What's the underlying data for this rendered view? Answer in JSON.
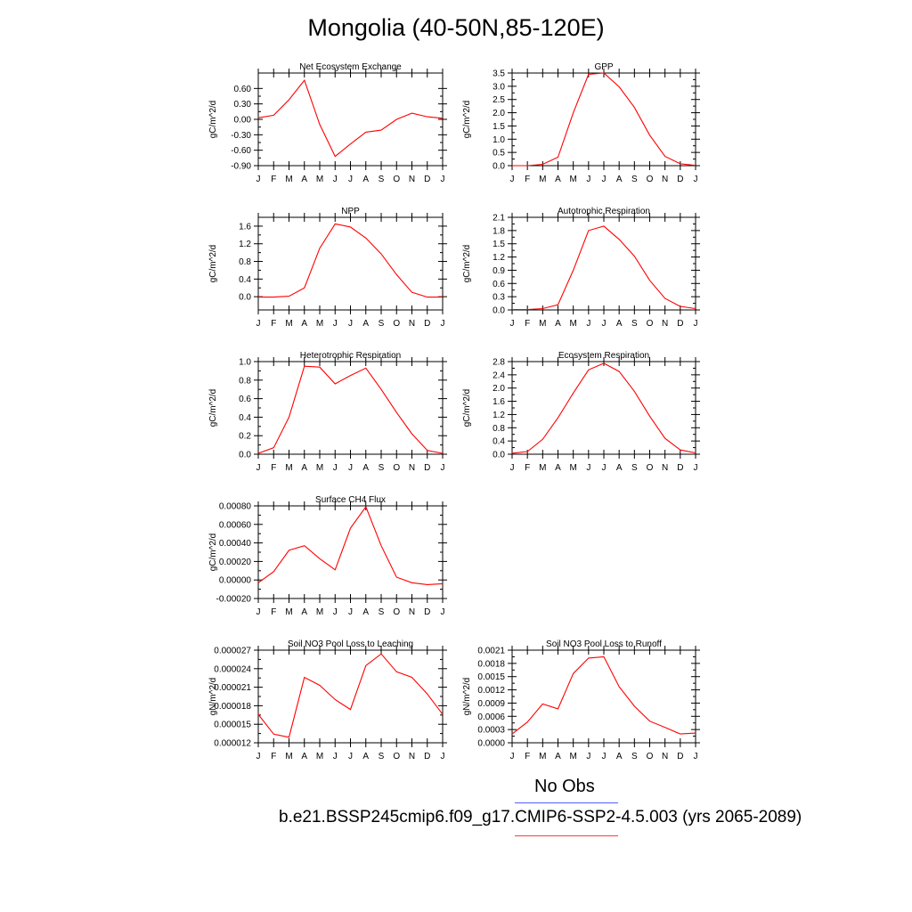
{
  "title": "Mongolia (40-50N,85-120E)",
  "legend": {
    "obs_label": "No Obs",
    "model_label": "b.e21.BSSP245cmip6.f09_g17.CMIP6-SSP2-4.5.003 (yrs 2065-2089)",
    "obs_color": "#4f5fff",
    "model_color": "#ff3b3b"
  },
  "chart_data": [
    {
      "type": "line",
      "title": "Net Ecosystem Exchange",
      "ylabel": "gC/m^2/d",
      "categories": [
        "J",
        "F",
        "M",
        "A",
        "M",
        "J",
        "J",
        "A",
        "S",
        "O",
        "N",
        "D",
        "J"
      ],
      "ylim": [
        -0.9,
        0.9
      ],
      "yticks": [
        -0.9,
        -0.6,
        -0.3,
        0.0,
        0.3,
        0.6
      ],
      "ytick_labels": [
        "-0.90",
        "-0.60",
        "-0.30",
        "0.00",
        "0.30",
        "0.60"
      ],
      "series": [
        {
          "values": [
            0.03,
            0.08,
            0.38,
            0.76,
            -0.1,
            -0.72,
            -0.48,
            -0.25,
            -0.21,
            0.0,
            0.12,
            0.05,
            0.02
          ],
          "color": "#ff0000"
        }
      ]
    },
    {
      "type": "line",
      "title": "GPP",
      "ylabel": "gC/m^2/d",
      "categories": [
        "J",
        "F",
        "M",
        "A",
        "M",
        "J",
        "J",
        "A",
        "S",
        "O",
        "N",
        "D",
        "J"
      ],
      "ylim": [
        0,
        3.5
      ],
      "yticks": [
        0,
        0.5,
        1.0,
        1.5,
        2.0,
        2.5,
        3.0,
        3.5
      ],
      "ytick_labels": [
        "0.0",
        "0.5",
        "1.0",
        "1.5",
        "2.0",
        "2.5",
        "3.0",
        "3.5"
      ],
      "series": [
        {
          "values": [
            0.0,
            0.0,
            0.05,
            0.32,
            2.0,
            3.45,
            3.5,
            2.98,
            2.2,
            1.15,
            0.35,
            0.07,
            0.01
          ],
          "color": "#ff0000"
        }
      ]
    },
    {
      "type": "line",
      "title": "NPP",
      "ylabel": "gC/m^2/d",
      "categories": [
        "J",
        "F",
        "M",
        "A",
        "M",
        "J",
        "J",
        "A",
        "S",
        "O",
        "N",
        "D",
        "J"
      ],
      "ylim": [
        -0.3,
        1.8
      ],
      "yticks": [
        0.0,
        0.4,
        0.8,
        1.2,
        1.6
      ],
      "ytick_labels": [
        "0.0",
        "0.4",
        "0.8",
        "1.2",
        "1.6"
      ],
      "series": [
        {
          "values": [
            -0.01,
            -0.01,
            0.01,
            0.2,
            1.1,
            1.65,
            1.58,
            1.33,
            0.97,
            0.5,
            0.1,
            -0.01,
            -0.01
          ],
          "color": "#ff0000"
        }
      ]
    },
    {
      "type": "line",
      "title": "Autotrophic Respiration",
      "ylabel": "gC/m^2/d",
      "categories": [
        "J",
        "F",
        "M",
        "A",
        "M",
        "J",
        "J",
        "A",
        "S",
        "O",
        "N",
        "D",
        "J"
      ],
      "ylim": [
        0,
        2.1
      ],
      "yticks": [
        0,
        0.3,
        0.6,
        0.9,
        1.2,
        1.5,
        1.8,
        2.1
      ],
      "ytick_labels": [
        "0.0",
        "0.3",
        "0.6",
        "0.9",
        "1.2",
        "1.5",
        "1.8",
        "2.1"
      ],
      "series": [
        {
          "values": [
            0.01,
            0.01,
            0.03,
            0.12,
            0.9,
            1.8,
            1.9,
            1.6,
            1.22,
            0.67,
            0.26,
            0.08,
            0.03
          ],
          "color": "#ff0000"
        }
      ]
    },
    {
      "type": "line",
      "title": "Heterotrophic Respiration",
      "ylabel": "gC/m^2/d",
      "categories": [
        "J",
        "F",
        "M",
        "A",
        "M",
        "J",
        "J",
        "A",
        "S",
        "O",
        "N",
        "D",
        "J"
      ],
      "ylim": [
        0,
        1.0
      ],
      "yticks": [
        0,
        0.2,
        0.4,
        0.6,
        0.8,
        1.0
      ],
      "ytick_labels": [
        "0.0",
        "0.2",
        "0.4",
        "0.6",
        "0.8",
        "1.0"
      ],
      "series": [
        {
          "values": [
            0.01,
            0.07,
            0.4,
            0.95,
            0.94,
            0.76,
            0.85,
            0.93,
            0.7,
            0.45,
            0.22,
            0.04,
            0.01
          ],
          "color": "#ff0000"
        }
      ]
    },
    {
      "type": "line",
      "title": "Ecosystem Respiration",
      "ylabel": "gC/m^2/d",
      "categories": [
        "J",
        "F",
        "M",
        "A",
        "M",
        "J",
        "J",
        "A",
        "S",
        "O",
        "N",
        "D",
        "J"
      ],
      "ylim": [
        0,
        2.8
      ],
      "yticks": [
        0,
        0.4,
        0.8,
        1.2,
        1.6,
        2.0,
        2.4,
        2.8
      ],
      "ytick_labels": [
        "0.0",
        "0.4",
        "0.8",
        "1.2",
        "1.6",
        "2.0",
        "2.4",
        "2.8"
      ],
      "series": [
        {
          "values": [
            0.03,
            0.08,
            0.45,
            1.1,
            1.85,
            2.55,
            2.75,
            2.5,
            1.9,
            1.15,
            0.48,
            0.13,
            0.04
          ],
          "color": "#ff0000"
        }
      ]
    },
    {
      "type": "line",
      "title": "Surface CH4 Flux",
      "ylabel": "gC/m^2/d",
      "categories": [
        "J",
        "F",
        "M",
        "A",
        "M",
        "J",
        "J",
        "A",
        "S",
        "O",
        "N",
        "D",
        "J"
      ],
      "ylim": [
        -0.0002,
        0.0008
      ],
      "yticks": [
        -0.0002,
        0.0,
        0.0002,
        0.0004,
        0.0006,
        0.0008
      ],
      "ytick_labels": [
        "-0.00020",
        "0.00000",
        "0.00020",
        "0.00040",
        "0.00060",
        "0.00080"
      ],
      "series": [
        {
          "values": [
            -3e-05,
            9e-05,
            0.00032,
            0.00037,
            0.00023,
            0.00011,
            0.00056,
            0.00079,
            0.00037,
            3e-05,
            -3e-05,
            -5e-05,
            -4e-05
          ],
          "color": "#ff0000"
        }
      ]
    },
    {
      "type": "line",
      "title": "Soil NO3 Pool Loss to Leaching",
      "ylabel": "gN/m^2/d",
      "categories": [
        "J",
        "F",
        "M",
        "A",
        "M",
        "J",
        "J",
        "A",
        "S",
        "O",
        "N",
        "D",
        "J"
      ],
      "ylim": [
        1.2e-05,
        2.7e-05
      ],
      "yticks": [
        1.2e-05,
        1.5e-05,
        1.8e-05,
        2.1e-05,
        2.4e-05,
        2.7e-05
      ],
      "ytick_labels": [
        "0.000012",
        "0.000015",
        "0.000018",
        "0.000021",
        "0.000024",
        "0.000027"
      ],
      "series": [
        {
          "values": [
            1.66e-05,
            1.34e-05,
            1.29e-05,
            2.26e-05,
            2.13e-05,
            1.9e-05,
            1.74e-05,
            2.45e-05,
            2.64e-05,
            2.35e-05,
            2.26e-05,
            1.99e-05,
            1.66e-05
          ],
          "color": "#ff0000"
        }
      ]
    },
    {
      "type": "line",
      "title": "Soil NO3 Pool Loss to Runoff",
      "ylabel": "gN/m^2/d",
      "categories": [
        "J",
        "F",
        "M",
        "A",
        "M",
        "J",
        "J",
        "A",
        "S",
        "O",
        "N",
        "D",
        "J"
      ],
      "ylim": [
        0,
        0.0021
      ],
      "yticks": [
        0,
        0.0003,
        0.0006,
        0.0009,
        0.0012,
        0.0015,
        0.0018,
        0.0021
      ],
      "ytick_labels": [
        "0.0000",
        "0.0003",
        "0.0006",
        "0.0009",
        "0.0012",
        "0.0015",
        "0.0018",
        "0.0021"
      ],
      "series": [
        {
          "values": [
            0.0002,
            0.00047,
            0.00088,
            0.00077,
            0.00157,
            0.00192,
            0.00195,
            0.00127,
            0.00083,
            0.00049,
            0.00035,
            0.0002,
            0.00022
          ],
          "color": "#ff0000"
        }
      ]
    }
  ]
}
